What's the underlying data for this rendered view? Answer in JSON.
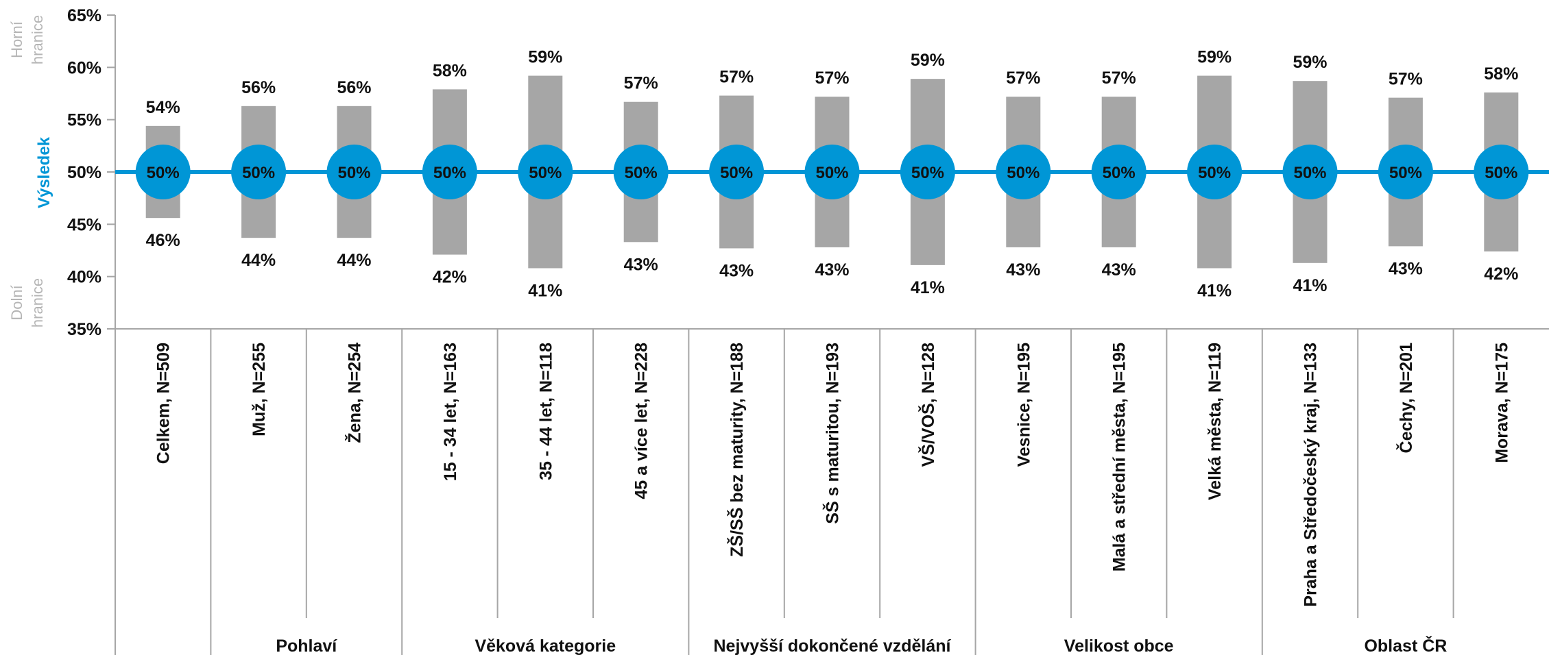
{
  "chart_data": {
    "type": "bar",
    "ylabel": "Výsledek",
    "upper_label": [
      "Horní",
      "hranice"
    ],
    "lower_label": [
      "Dolní",
      "hranice"
    ],
    "ylim": [
      35,
      65
    ],
    "yticks": [
      "35%",
      "40%",
      "45%",
      "50%",
      "55%",
      "60%",
      "65%"
    ],
    "tick_values": [
      35,
      40,
      45,
      50,
      55,
      60,
      65
    ],
    "result_label": "50%",
    "result_value": 50,
    "categories": [
      "Celkem, N=509",
      "Muž, N=255",
      "Žena, N=254",
      "15 - 34 let, N=163",
      "35 - 44 let, N=118",
      "45 a více let, N=228",
      "ZŠ/SŠ bez maturity, N=188",
      "SŠ s maturitou, N=193",
      "VŠ/VOŠ, N=128",
      "Vesnice, N=195",
      "Malá a střední města, N=195",
      "Velká města, N=119",
      "Praha a Středočeský kraj, N=133",
      "Čechy, N=201",
      "Morava, N=175"
    ],
    "upper": [
      54.4,
      56.3,
      56.3,
      57.9,
      59.2,
      56.7,
      57.3,
      57.2,
      58.9,
      57.2,
      57.2,
      59.2,
      58.7,
      57.1,
      57.6
    ],
    "lower": [
      45.6,
      43.7,
      43.7,
      42.1,
      40.8,
      43.3,
      42.7,
      42.8,
      41.1,
      42.8,
      42.8,
      40.8,
      41.3,
      42.9,
      42.4
    ],
    "upper_labels": [
      "54%",
      "56%",
      "56%",
      "58%",
      "59%",
      "57%",
      "57%",
      "57%",
      "59%",
      "57%",
      "57%",
      "59%",
      "59%",
      "57%",
      "58%"
    ],
    "lower_labels": [
      "46%",
      "44%",
      "44%",
      "42%",
      "41%",
      "43%",
      "43%",
      "43%",
      "41%",
      "43%",
      "43%",
      "41%",
      "41%",
      "43%",
      "42%"
    ],
    "groups": [
      {
        "label": "",
        "start": 0,
        "end": 0
      },
      {
        "label": "Pohlaví",
        "start": 1,
        "end": 2
      },
      {
        "label": "Věková kategorie",
        "start": 3,
        "end": 5
      },
      {
        "label": "Nejvyšší dokončené vzdělání",
        "start": 6,
        "end": 8
      },
      {
        "label": "Velikost obce",
        "start": 9,
        "end": 11
      },
      {
        "label": "Oblast ČR",
        "start": 12,
        "end": 14
      }
    ],
    "colors": {
      "bar": "#a6a6a6",
      "line": "#0096d6",
      "marker": "#0096d6",
      "axis": "#a6a6a6",
      "muted_text": "#b5b5b5"
    }
  }
}
